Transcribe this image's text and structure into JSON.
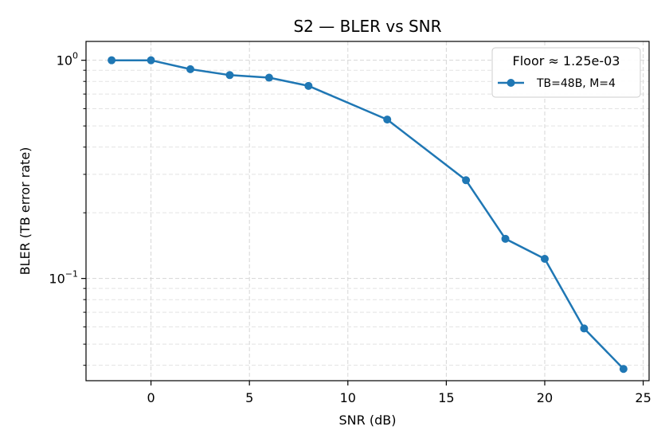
{
  "chart_data": {
    "type": "line",
    "title": "S2 — BLER vs SNR",
    "xlabel": "SNR (dB)",
    "ylabel": "BLER (TB error rate)",
    "xlim": [
      -3.3,
      25.3
    ],
    "ylim": [
      0.034,
      1.22
    ],
    "yscale": "log",
    "x_ticks": [
      0,
      5,
      10,
      15,
      20,
      25
    ],
    "x_tick_labels": [
      "0",
      "5",
      "10",
      "15",
      "20",
      "25"
    ],
    "y_major_ticks": [
      {
        "value": 1.0,
        "base": "10",
        "exp": "0"
      },
      {
        "value": 0.1,
        "base": "10",
        "exp": "−1"
      }
    ],
    "grid": true,
    "legend": {
      "title": "Floor ≈ 1.25e-03",
      "placement": "top-right"
    },
    "series": [
      {
        "name": "TB=48B, M=4",
        "color": "#1f77b4",
        "marker": "circle",
        "x": [
          -2,
          0,
          2,
          4,
          6,
          8,
          12,
          16,
          18,
          20,
          22,
          24
        ],
        "y": [
          1.0,
          1.0,
          0.91,
          0.855,
          0.832,
          0.763,
          0.535,
          0.282,
          0.152,
          0.123,
          0.059,
          0.0385
        ]
      }
    ]
  }
}
